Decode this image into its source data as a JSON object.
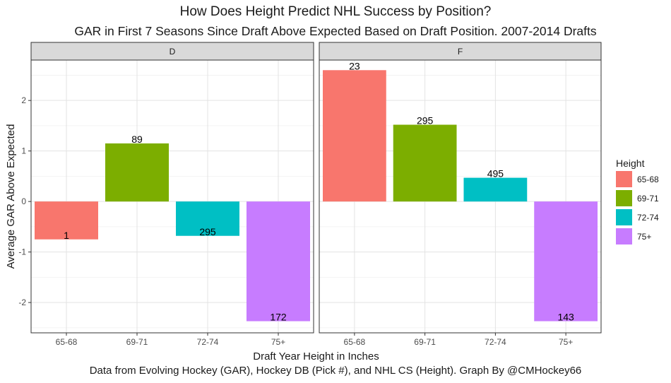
{
  "chart_data": {
    "type": "bar",
    "title": "How Does Height Predict NHL Success by Position?",
    "subtitle": "GAR in First 7 Seasons Since Draft Above Expected Based on Draft Position. 2007-2014 Drafts",
    "caption": "Data from Evolving Hockey (GAR), Hockey DB (Pick #), and NHL CS (Height). Graph By @CMHockey66",
    "xlabel": "Draft Year Height in Inches",
    "ylabel": "Average GAR Above Expected",
    "categories": [
      "65-68",
      "69-71",
      "72-74",
      "75+"
    ],
    "ylim": [
      -2.6,
      2.8
    ],
    "yticks": [
      -2,
      -1,
      0,
      1,
      2
    ],
    "grid": true,
    "legend": {
      "title": "Height",
      "placement": "right",
      "entries": [
        "65-68",
        "69-71",
        "72-74",
        "75+"
      ]
    },
    "colors": {
      "65-68": "#F8766D",
      "69-71": "#7CAE00",
      "72-74": "#00BFC4",
      "75+": "#C77CFF"
    },
    "facets": [
      {
        "name": "D",
        "values": [
          -0.75,
          1.15,
          -0.68,
          -2.37
        ],
        "labels": [
          "1",
          "89",
          "295",
          "172"
        ]
      },
      {
        "name": "F",
        "values": [
          2.6,
          1.52,
          0.47,
          -2.37
        ],
        "labels": [
          "23",
          "295",
          "495",
          "143"
        ]
      }
    ]
  }
}
